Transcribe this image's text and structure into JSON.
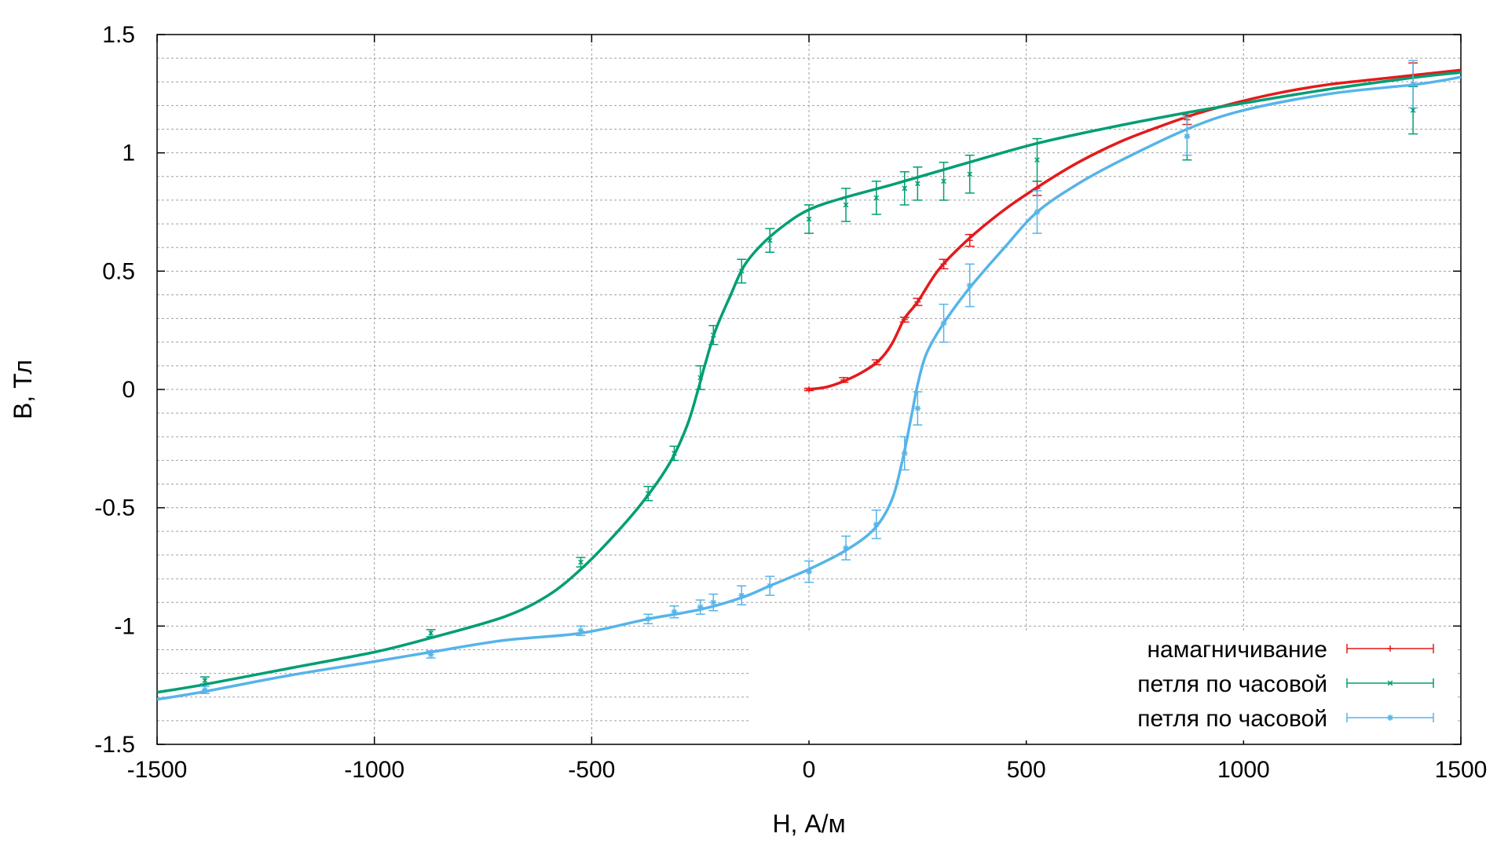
{
  "chart_data": {
    "type": "line",
    "title": "",
    "xlabel": "H, А/м",
    "ylabel": "B, Тл",
    "xlim": [
      -1500,
      1500
    ],
    "ylim": [
      -1.5,
      1.5
    ],
    "x_ticks": [
      -1500,
      -1000,
      -500,
      0,
      500,
      1000,
      1500
    ],
    "x_tick_labels": [
      "-1500",
      "-1000",
      "-500",
      "0",
      "500",
      "1000",
      "1500"
    ],
    "y_ticks": [
      -1.5,
      -1,
      -0.5,
      0,
      0.5,
      1,
      1.5
    ],
    "y_tick_labels": [
      "-1.5",
      "-1",
      "-0.5",
      "0",
      "0.5",
      "1",
      "1.5"
    ],
    "grid": true,
    "legend_position": "bottom-right",
    "series": [
      {
        "name": "намагничивание",
        "color": "#e41a1c",
        "marker": "plus",
        "curve": [
          [
            0,
            0
          ],
          [
            40,
            0.01
          ],
          [
            80,
            0.035
          ],
          [
            120,
            0.07
          ],
          [
            160,
            0.12
          ],
          [
            190,
            0.19
          ],
          [
            220,
            0.3
          ],
          [
            250,
            0.37
          ],
          [
            300,
            0.51
          ],
          [
            370,
            0.64
          ],
          [
            450,
            0.76
          ],
          [
            530,
            0.86
          ],
          [
            620,
            0.96
          ],
          [
            720,
            1.05
          ],
          [
            820,
            1.12
          ],
          [
            900,
            1.17
          ],
          [
            1000,
            1.22
          ],
          [
            1100,
            1.26
          ],
          [
            1200,
            1.29
          ],
          [
            1300,
            1.31
          ],
          [
            1400,
            1.33
          ],
          [
            1500,
            1.35
          ]
        ],
        "points": [
          {
            "x": 0,
            "y": 0,
            "err": 0.005
          },
          {
            "x": 80,
            "y": 0.04,
            "err": 0.01
          },
          {
            "x": 155,
            "y": 0.115,
            "err": 0.01
          },
          {
            "x": 220,
            "y": 0.295,
            "err": 0.01
          },
          {
            "x": 250,
            "y": 0.37,
            "err": 0.015
          },
          {
            "x": 310,
            "y": 0.53,
            "err": 0.02
          },
          {
            "x": 370,
            "y": 0.63,
            "err": 0.025
          },
          {
            "x": 525,
            "y": 0.85,
            "err": 0.03
          },
          {
            "x": 870,
            "y": 1.14,
            "err": 0.02
          },
          {
            "x": 1390,
            "y": 1.33,
            "err": 0.05
          }
        ]
      },
      {
        "name": "петля по часовой",
        "color": "#009e73",
        "marker": "cross",
        "curve": [
          [
            -1500,
            -1.28
          ],
          [
            -1400,
            -1.25
          ],
          [
            -1200,
            -1.18
          ],
          [
            -1000,
            -1.11
          ],
          [
            -870,
            -1.05
          ],
          [
            -700,
            -0.96
          ],
          [
            -600,
            -0.87
          ],
          [
            -525,
            -0.76
          ],
          [
            -450,
            -0.62
          ],
          [
            -380,
            -0.47
          ],
          [
            -320,
            -0.31
          ],
          [
            -280,
            -0.15
          ],
          [
            -255,
            0.0
          ],
          [
            -240,
            0.1
          ],
          [
            -215,
            0.25
          ],
          [
            -180,
            0.4
          ],
          [
            -150,
            0.52
          ],
          [
            -110,
            0.61
          ],
          [
            -60,
            0.69
          ],
          [
            0,
            0.76
          ],
          [
            80,
            0.81
          ],
          [
            200,
            0.87
          ],
          [
            350,
            0.95
          ],
          [
            525,
            1.04
          ],
          [
            700,
            1.11
          ],
          [
            870,
            1.17
          ],
          [
            1000,
            1.21
          ],
          [
            1200,
            1.27
          ],
          [
            1400,
            1.32
          ],
          [
            1500,
            1.34
          ]
        ],
        "points": [
          {
            "x": -1390,
            "y": -1.23,
            "err": 0.015
          },
          {
            "x": -870,
            "y": -1.03,
            "err": 0.015
          },
          {
            "x": -525,
            "y": -0.73,
            "err": 0.02
          },
          {
            "x": -370,
            "y": -0.44,
            "err": 0.03
          },
          {
            "x": -310,
            "y": -0.27,
            "err": 0.03
          },
          {
            "x": -250,
            "y": 0.05,
            "err": 0.05
          },
          {
            "x": -220,
            "y": 0.23,
            "err": 0.04
          },
          {
            "x": -155,
            "y": 0.5,
            "err": 0.05
          },
          {
            "x": -90,
            "y": 0.63,
            "err": 0.05
          },
          {
            "x": 0,
            "y": 0.72,
            "err": 0.06
          },
          {
            "x": 85,
            "y": 0.78,
            "err": 0.07
          },
          {
            "x": 155,
            "y": 0.81,
            "err": 0.07
          },
          {
            "x": 220,
            "y": 0.85,
            "err": 0.07
          },
          {
            "x": 250,
            "y": 0.87,
            "err": 0.07
          },
          {
            "x": 310,
            "y": 0.88,
            "err": 0.08
          },
          {
            "x": 370,
            "y": 0.91,
            "err": 0.08
          },
          {
            "x": 525,
            "y": 0.97,
            "err": 0.09
          },
          {
            "x": 870,
            "y": 1.07,
            "err": 0.1
          },
          {
            "x": 1390,
            "y": 1.18,
            "err": 0.1
          }
        ]
      },
      {
        "name": "петля по часовой",
        "color": "#56b4e9",
        "marker": "star",
        "curve": [
          [
            -1500,
            -1.31
          ],
          [
            -1400,
            -1.28
          ],
          [
            -1200,
            -1.21
          ],
          [
            -1000,
            -1.15
          ],
          [
            -870,
            -1.11
          ],
          [
            -700,
            -1.06
          ],
          [
            -525,
            -1.03
          ],
          [
            -370,
            -0.97
          ],
          [
            -250,
            -0.93
          ],
          [
            -155,
            -0.88
          ],
          [
            -90,
            -0.83
          ],
          [
            0,
            -0.76
          ],
          [
            85,
            -0.68
          ],
          [
            150,
            -0.59
          ],
          [
            190,
            -0.47
          ],
          [
            215,
            -0.3
          ],
          [
            235,
            -0.12
          ],
          [
            250,
            0.02
          ],
          [
            270,
            0.15
          ],
          [
            310,
            0.28
          ],
          [
            370,
            0.43
          ],
          [
            450,
            0.6
          ],
          [
            525,
            0.75
          ],
          [
            620,
            0.87
          ],
          [
            720,
            0.97
          ],
          [
            870,
            1.1
          ],
          [
            1000,
            1.18
          ],
          [
            1200,
            1.25
          ],
          [
            1400,
            1.29
          ],
          [
            1500,
            1.32
          ]
        ],
        "points": [
          {
            "x": -1390,
            "y": -1.27,
            "err": 0.015
          },
          {
            "x": -870,
            "y": -1.12,
            "err": 0.015
          },
          {
            "x": -525,
            "y": -1.02,
            "err": 0.02
          },
          {
            "x": -370,
            "y": -0.97,
            "err": 0.02
          },
          {
            "x": -310,
            "y": -0.94,
            "err": 0.025
          },
          {
            "x": -250,
            "y": -0.92,
            "err": 0.03
          },
          {
            "x": -220,
            "y": -0.9,
            "err": 0.035
          },
          {
            "x": -155,
            "y": -0.87,
            "err": 0.04
          },
          {
            "x": -90,
            "y": -0.83,
            "err": 0.04
          },
          {
            "x": 0,
            "y": -0.77,
            "err": 0.045
          },
          {
            "x": 85,
            "y": -0.67,
            "err": 0.05
          },
          {
            "x": 155,
            "y": -0.57,
            "err": 0.06
          },
          {
            "x": 220,
            "y": -0.27,
            "err": 0.07
          },
          {
            "x": 250,
            "y": -0.08,
            "err": 0.07
          },
          {
            "x": 310,
            "y": 0.28,
            "err": 0.08
          },
          {
            "x": 370,
            "y": 0.44,
            "err": 0.09
          },
          {
            "x": 525,
            "y": 0.75,
            "err": 0.09
          },
          {
            "x": 870,
            "y": 1.07,
            "err": 0.08
          },
          {
            "x": 1390,
            "y": 1.29,
            "err": 0.1
          }
        ]
      }
    ]
  }
}
